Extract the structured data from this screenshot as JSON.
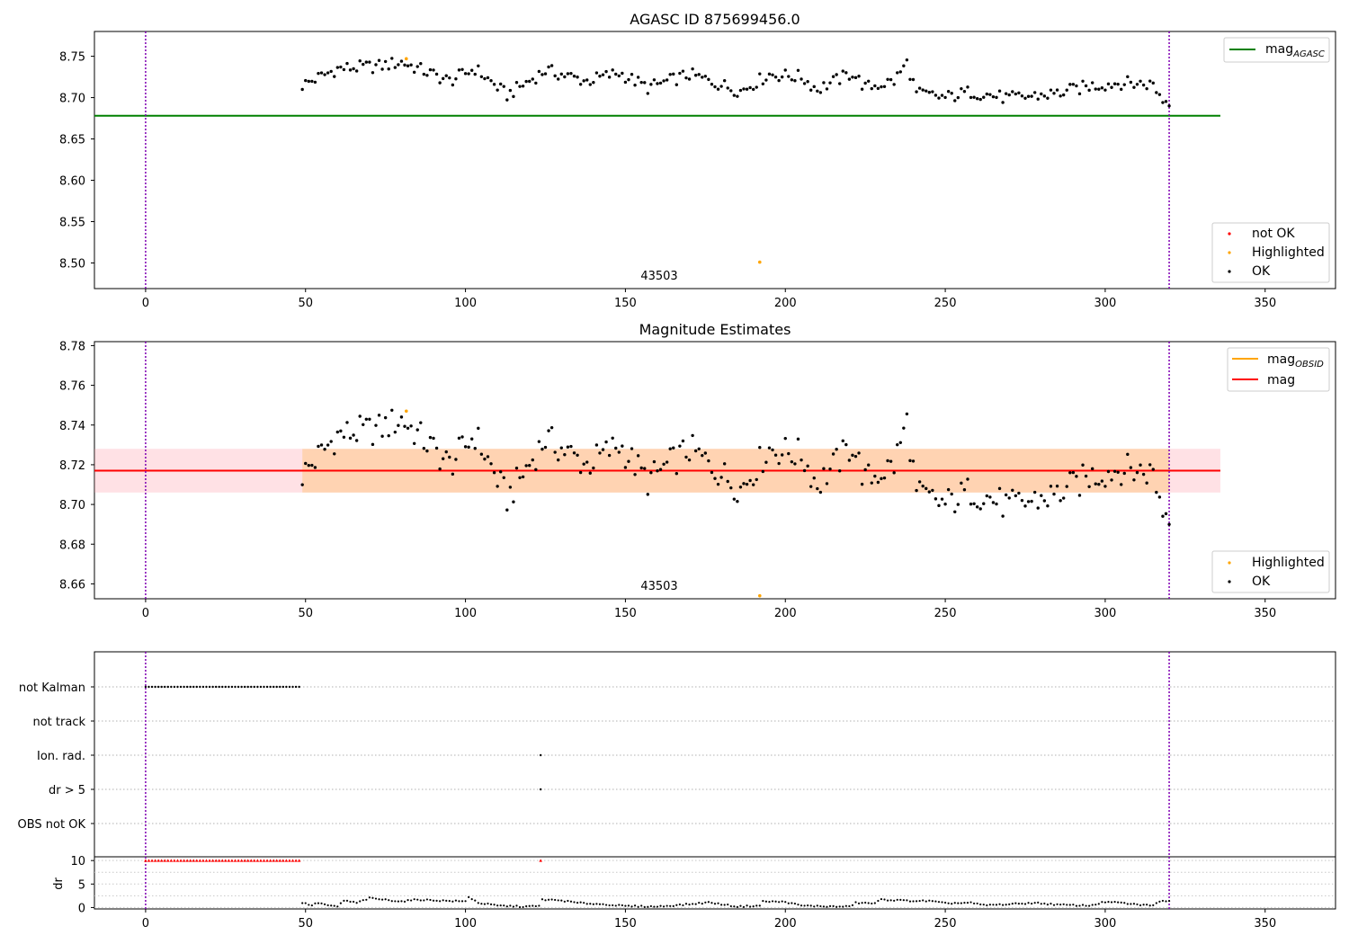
{
  "chart_data": [
    {
      "type": "scatter",
      "title": "AGASC ID 875699456.0",
      "xlim": [
        -16,
        372
      ],
      "ylim": [
        8.469,
        8.78
      ],
      "xticks": [
        0,
        50,
        100,
        150,
        200,
        250,
        300,
        350
      ],
      "yticks": [
        8.5,
        8.55,
        8.6,
        8.65,
        8.7,
        8.75
      ],
      "ytick_labels": [
        "8.50",
        "8.55",
        "8.60",
        "8.65",
        "8.70",
        "8.75"
      ],
      "vlines": [
        0,
        320
      ],
      "mag_agasc": 8.678,
      "mag_agasc_x_range": [
        -16,
        336
      ],
      "annotation": {
        "text": "43503",
        "x": 160,
        "y": 8.482
      },
      "legend_lines": [
        {
          "label": "mag",
          "sub": "AGASC",
          "color": "#008000"
        }
      ],
      "legend_points": [
        {
          "label": "not OK",
          "color": "#ff0000"
        },
        {
          "label": "Highlighted",
          "color": "#ffa500"
        },
        {
          "label": "OK",
          "color": "#000000"
        }
      ],
      "highlighted": [
        [
          81.5,
          8.747
        ],
        [
          192,
          8.501
        ]
      ],
      "ok_anchors": [
        [
          49,
          8.715
        ],
        [
          60,
          8.735
        ],
        [
          73,
          8.738
        ],
        [
          80,
          8.743
        ],
        [
          95,
          8.72
        ],
        [
          103,
          8.735
        ],
        [
          113,
          8.703
        ],
        [
          125,
          8.733
        ],
        [
          138,
          8.72
        ],
        [
          148,
          8.73
        ],
        [
          157,
          8.712
        ],
        [
          170,
          8.728
        ],
        [
          186,
          8.708
        ],
        [
          195,
          8.728
        ],
        [
          205,
          8.725
        ],
        [
          210,
          8.71
        ],
        [
          221,
          8.73
        ],
        [
          225,
          8.712
        ],
        [
          234,
          8.72
        ],
        [
          238,
          8.742
        ],
        [
          241,
          8.705
        ],
        [
          250,
          8.7
        ],
        [
          258,
          8.707
        ],
        [
          270,
          8.699
        ],
        [
          285,
          8.705
        ],
        [
          295,
          8.714
        ],
        [
          305,
          8.718
        ],
        [
          315,
          8.716
        ],
        [
          318,
          8.697
        ],
        [
          321,
          8.695
        ]
      ]
    },
    {
      "type": "scatter",
      "title": "Magnitude Estimates",
      "xlim": [
        -16,
        372
      ],
      "ylim": [
        8.6525,
        8.782
      ],
      "xticks": [
        0,
        50,
        100,
        150,
        200,
        250,
        300,
        350
      ],
      "yticks": [
        8.66,
        8.68,
        8.7,
        8.72,
        8.74,
        8.76,
        8.78
      ],
      "ytick_labels": [
        "8.66",
        "8.68",
        "8.70",
        "8.72",
        "8.74",
        "8.76",
        "8.78"
      ],
      "vlines": [
        0,
        320
      ],
      "mag": 8.717,
      "mag_band": [
        8.706,
        8.728
      ],
      "mag_obsid_band": [
        8.706,
        8.728
      ],
      "mag_obsid_x_range": [
        49,
        320
      ],
      "mag_x_range": [
        -16,
        336
      ],
      "annotation": {
        "text": "43503",
        "x": 160,
        "y": 8.655
      },
      "legend_lines": [
        {
          "label": "mag",
          "sub": "OBSID",
          "color": "#ffa500"
        },
        {
          "label": "mag",
          "sub": "",
          "color": "#ff0000"
        }
      ],
      "legend_points": [
        {
          "label": "Highlighted",
          "color": "#ffa500"
        },
        {
          "label": "OK",
          "color": "#000000"
        }
      ],
      "highlighted": [
        [
          81.5,
          8.747
        ],
        [
          192,
          8.654
        ]
      ]
    },
    {
      "type": "scatter",
      "xlim": [
        -16,
        372
      ],
      "categories": [
        "not Kalman",
        "not track",
        "Ion. rad.",
        "dr > 5",
        "OBS not OK"
      ],
      "vlines": [
        0,
        320
      ],
      "flag_events": [
        {
          "category": "not Kalman",
          "x_range": [
            0,
            48
          ]
        },
        {
          "category": "Ion. rad.",
          "x": [
            123.5
          ]
        },
        {
          "category": "dr > 5",
          "x": [
            123.5
          ]
        }
      ]
    },
    {
      "type": "scatter",
      "xlim": [
        -16,
        372
      ],
      "ylim": [
        -0.3,
        10.8
      ],
      "ylabel": "dr",
      "xticks": [
        0,
        50,
        100,
        150,
        200,
        250,
        300,
        350
      ],
      "yticks": [
        0,
        5,
        10
      ],
      "ytick_labels": [
        "0",
        "5",
        "10"
      ],
      "minor_ygrid": [
        0,
        2.5,
        5,
        7.5,
        10
      ],
      "vlines": [
        0,
        320
      ],
      "dr_capped_not_ok": {
        "value": 10,
        "x_range": [
          0,
          48
        ],
        "extra_x": [
          123.5
        ]
      },
      "dr_anchors": [
        [
          49,
          1.0
        ],
        [
          52,
          0.5
        ],
        [
          54,
          1.0
        ],
        [
          58,
          0.3
        ],
        [
          60,
          0.2
        ],
        [
          62,
          1.5
        ],
        [
          66,
          1.0
        ],
        [
          70,
          2.0
        ],
        [
          80,
          1.3
        ],
        [
          85,
          1.7
        ],
        [
          95,
          1.4
        ],
        [
          100,
          1.3
        ],
        [
          101,
          2.3
        ],
        [
          104,
          1.0
        ],
        [
          110,
          0.4
        ],
        [
          118,
          0.2
        ],
        [
          123,
          0.3
        ],
        [
          124,
          1.7
        ],
        [
          130,
          1.5
        ],
        [
          135,
          1.0
        ],
        [
          145,
          0.6
        ],
        [
          150,
          0.3
        ],
        [
          160,
          0.2
        ],
        [
          170,
          0.7
        ],
        [
          176,
          1.1
        ],
        [
          185,
          0.2
        ],
        [
          192,
          0.4
        ],
        [
          193,
          1.3
        ],
        [
          200,
          1.2
        ],
        [
          205,
          0.4
        ],
        [
          215,
          0.2
        ],
        [
          220,
          0.2
        ],
        [
          222,
          1.0
        ],
        [
          228,
          0.9
        ],
        [
          230,
          1.7
        ],
        [
          240,
          1.4
        ],
        [
          245,
          1.4
        ],
        [
          250,
          0.9
        ],
        [
          258,
          1.0
        ],
        [
          262,
          0.5
        ],
        [
          270,
          0.7
        ],
        [
          278,
          1.0
        ],
        [
          285,
          0.6
        ],
        [
          295,
          0.4
        ],
        [
          300,
          1.2
        ],
        [
          305,
          1.0
        ],
        [
          310,
          0.6
        ],
        [
          315,
          0.5
        ],
        [
          318,
          1.5
        ],
        [
          321,
          1.4
        ]
      ]
    }
  ]
}
